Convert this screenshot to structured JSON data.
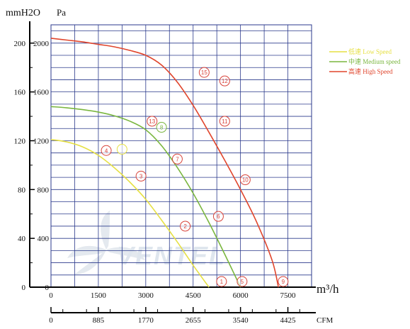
{
  "chart_data": {
    "type": "line",
    "y_unit_left": "mmH2O",
    "y_unit_right": "Pa",
    "x_unit_top": "m³/h",
    "x_unit_bottom": "CFM",
    "y_ticks_mmh2o": [
      0,
      40,
      80,
      120,
      160,
      200
    ],
    "y_ticks_pa": [
      0,
      400,
      800,
      1200,
      1600,
      2000
    ],
    "x_ticks_m3h": [
      0,
      1500,
      3000,
      4500,
      6000,
      7500
    ],
    "x_ticks_cfm": [
      0,
      885,
      1770,
      2655,
      3540,
      4425
    ],
    "xlim": [
      0,
      8250
    ],
    "ylim": [
      0,
      2000
    ],
    "grid": true,
    "legend_position": "top-right",
    "series": [
      {
        "name": "低速 Low Speed",
        "color": "#e6e044",
        "points": [
          [
            0,
            1210
          ],
          [
            500,
            1190
          ],
          [
            1000,
            1150
          ],
          [
            1500,
            1080
          ],
          [
            2000,
            980
          ],
          [
            2500,
            860
          ],
          [
            3000,
            720
          ],
          [
            3500,
            550
          ],
          [
            4000,
            370
          ],
          [
            4500,
            180
          ],
          [
            5000,
            0
          ]
        ]
      },
      {
        "name": "中速 Medium speed",
        "color": "#7ab63f",
        "points": [
          [
            0,
            1480
          ],
          [
            500,
            1470
          ],
          [
            1000,
            1455
          ],
          [
            1500,
            1435
          ],
          [
            2000,
            1405
          ],
          [
            2500,
            1360
          ],
          [
            3000,
            1290
          ],
          [
            3500,
            1160
          ],
          [
            4000,
            980
          ],
          [
            4500,
            770
          ],
          [
            5000,
            530
          ],
          [
            5500,
            270
          ],
          [
            6000,
            0
          ]
        ]
      },
      {
        "name": "高速 High Speed",
        "color": "#e0452c",
        "points": [
          [
            0,
            2040
          ],
          [
            500,
            2025
          ],
          [
            1000,
            2010
          ],
          [
            1500,
            1990
          ],
          [
            2000,
            1970
          ],
          [
            2500,
            1940
          ],
          [
            3000,
            1900
          ],
          [
            3500,
            1820
          ],
          [
            4000,
            1680
          ],
          [
            4500,
            1490
          ],
          [
            5000,
            1270
          ],
          [
            5500,
            1040
          ],
          [
            6000,
            800
          ],
          [
            6500,
            540
          ],
          [
            7000,
            220
          ],
          [
            7200,
            0
          ]
        ]
      }
    ],
    "markers": [
      {
        "label": "1",
        "x": 5400,
        "y": 0,
        "color": "#d8433a"
      },
      {
        "label": "2",
        "x": 4250,
        "y": 500,
        "color": "#d8433a"
      },
      {
        "label": "3",
        "x": 2850,
        "y": 910,
        "color": "#d8433a"
      },
      {
        "label": "4",
        "x": 1750,
        "y": 1120,
        "color": "#d8433a"
      },
      {
        "label": "5",
        "x": 6050,
        "y": 0,
        "color": "#d8433a"
      },
      {
        "label": "6",
        "x": 5300,
        "y": 580,
        "color": "#d8433a"
      },
      {
        "label": "7",
        "x": 4000,
        "y": 1050,
        "color": "#d8433a"
      },
      {
        "label": "8",
        "x": 3500,
        "y": 1310,
        "color": "#7ab63f"
      },
      {
        "label": "9",
        "x": 7350,
        "y": 0,
        "color": "#d8433a"
      },
      {
        "label": "10",
        "x": 6150,
        "y": 880,
        "color": "#d8433a"
      },
      {
        "label": "11",
        "x": 5500,
        "y": 1360,
        "color": "#d8433a"
      },
      {
        "label": "12",
        "x": 5500,
        "y": 1690,
        "color": "#d8433a"
      },
      {
        "label": "13",
        "x": 3200,
        "y": 1360,
        "color": "#d8433a"
      },
      {
        "label": "15",
        "x": 4850,
        "y": 1760,
        "color": "#d8433a"
      },
      {
        "label": "",
        "x": 2250,
        "y": 1130,
        "color": "#e6e044"
      }
    ],
    "watermark": "VENTEL"
  }
}
